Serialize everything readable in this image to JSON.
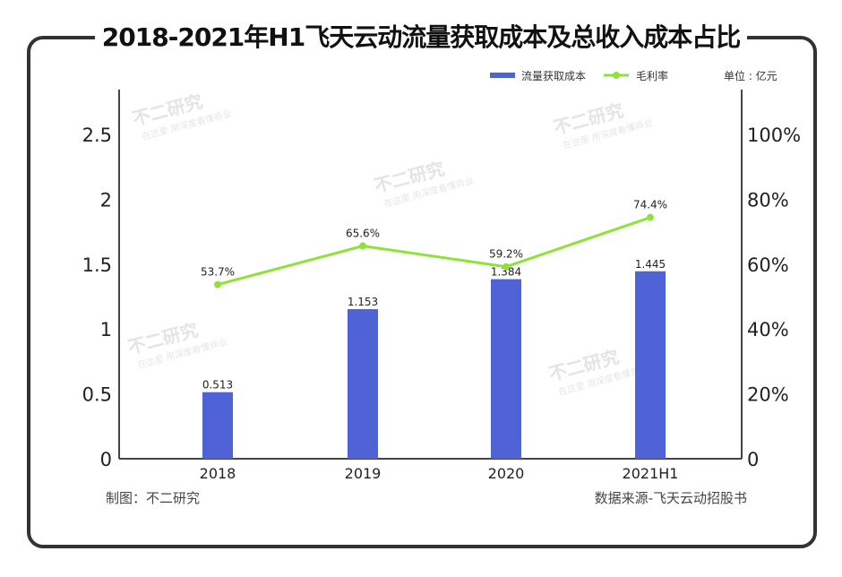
{
  "title": "2018-2021年H1飞天云动流量获取成本及总收入成本占比",
  "unit": "单位 : 亿元",
  "footer_left": "制图：不二研究",
  "footer_right": "数据来源-飞天云动招股书",
  "watermark": "不二研究 在这里 用深度看懂商业",
  "chart_data": {
    "type": "bar+line",
    "categories": [
      "2018",
      "2019",
      "2020",
      "2021H1"
    ],
    "series": [
      {
        "name": "流量获取成本",
        "type": "bar",
        "axis": "left",
        "values": [
          0.513,
          1.153,
          1.384,
          1.445
        ],
        "labels": [
          "0.513",
          "1.153",
          "1.384",
          "1.445"
        ],
        "color": "#4f62d6"
      },
      {
        "name": "毛利率",
        "type": "line",
        "axis": "right",
        "values": [
          53.7,
          65.6,
          59.2,
          74.4
        ],
        "labels": [
          "53.7%",
          "65.6%",
          "59.2%",
          "74.4%"
        ],
        "color": "#8ee23a"
      }
    ],
    "left_axis": {
      "ylim": [
        0,
        2.5
      ],
      "ticks": [
        "0",
        "0.5",
        "1",
        "1.5",
        "2",
        "2.5"
      ]
    },
    "right_axis": {
      "ylim": [
        0,
        100
      ],
      "ticks": [
        "0",
        "20%",
        "40%",
        "60%",
        "80%",
        "100%"
      ]
    },
    "grid": false,
    "legend": "top-right"
  }
}
